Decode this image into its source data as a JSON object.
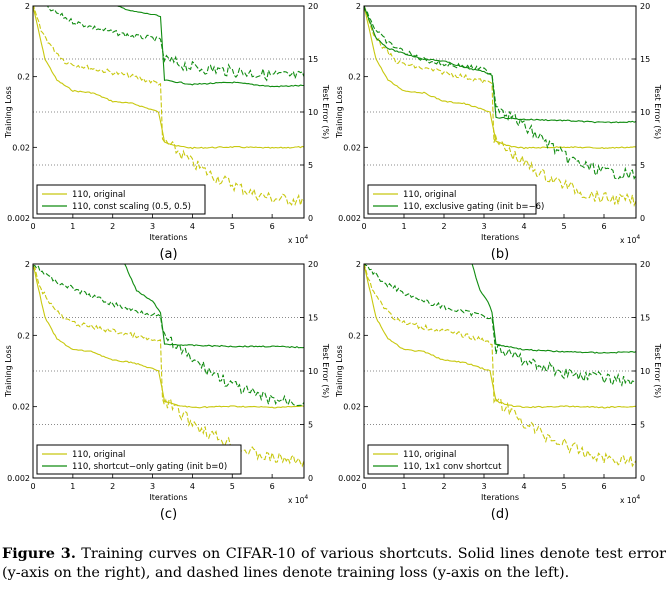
{
  "caption": {
    "label": "Figure 3.",
    "text": "Training curves on CIFAR-10 of various shortcuts. Solid lines denote test error (y-axis on the right), and dashed lines denote training loss (y-axis on the left)."
  },
  "colors": {
    "original": "#c8c810",
    "variant": "#118c11"
  },
  "chart_data": [
    {
      "type": "line",
      "panel": "(a)",
      "xlabel": "Iterations",
      "x_multiplier": "x 10^4",
      "ylabel_left": "Training Loss",
      "ylabel_right": "Test Error (%)",
      "xlim": [
        0,
        6.8
      ],
      "xticks": [
        0,
        1,
        2,
        3,
        4,
        5,
        6
      ],
      "ylim_left": [
        0.002,
        2
      ],
      "yscale_left": "log",
      "yticks_left": [
        "0.002",
        "0.02",
        "0.2",
        "2"
      ],
      "ylim_right": [
        0,
        20
      ],
      "yticks_right": [
        0,
        5,
        10,
        15,
        20
      ],
      "legend_position": "bottom-left",
      "series": [
        {
          "name": "110, original",
          "color": "#c8c810",
          "style": "solid",
          "axis": "right",
          "x": [
            0,
            0.3,
            0.6,
            1.0,
            1.5,
            2.0,
            2.5,
            3.0,
            3.15,
            3.3,
            3.6,
            4,
            5,
            6,
            6.8
          ],
          "y": [
            20,
            15,
            13,
            12,
            11.8,
            11,
            10.8,
            10.2,
            10,
            7.2,
            6.8,
            6.6,
            6.7,
            6.6,
            6.7
          ]
        },
        {
          "name": "110, original",
          "color": "#c8c810",
          "style": "dashed",
          "axis": "left",
          "x": [
            0,
            0.2,
            0.5,
            0.8,
            1.0,
            1.5,
            2.0,
            2.5,
            3.0,
            3.2,
            3.25,
            3.5,
            4,
            4.5,
            5,
            5.5,
            6,
            6.8
          ],
          "y": [
            2,
            0.9,
            0.5,
            0.33,
            0.3,
            0.26,
            0.23,
            0.2,
            0.17,
            0.16,
            0.025,
            0.02,
            0.012,
            0.008,
            0.006,
            0.0045,
            0.0038,
            0.0035
          ]
        },
        {
          "name": "110, const scaling (0.5, 0.5)",
          "color": "#118c11",
          "style": "solid",
          "axis": "right",
          "x": [
            2.1,
            2.5,
            3.0,
            3.2,
            3.3,
            4,
            5,
            6,
            6.8
          ],
          "y": [
            20,
            19.5,
            19.2,
            19,
            13,
            12.6,
            12.8,
            12.4,
            12.5
          ]
        },
        {
          "name": "110, const scaling (0.5, 0.5)",
          "color": "#118c11",
          "style": "dashed",
          "axis": "left",
          "x": [
            0.3,
            0.5,
            1,
            1.5,
            2,
            2.5,
            3,
            3.2,
            3.3,
            4,
            5,
            6,
            6.8
          ],
          "y": [
            2,
            1.7,
            1.2,
            1.0,
            0.85,
            0.75,
            0.7,
            0.65,
            0.35,
            0.27,
            0.24,
            0.21,
            0.2
          ]
        }
      ]
    },
    {
      "type": "line",
      "panel": "(b)",
      "xlabel": "Iterations",
      "x_multiplier": "x 10^4",
      "ylabel_left": "Training Loss",
      "ylabel_right": "Test Error (%)",
      "xlim": [
        0,
        6.8
      ],
      "xticks": [
        0,
        1,
        2,
        3,
        4,
        5,
        6
      ],
      "ylim_left": [
        0.002,
        2
      ],
      "yscale_left": "log",
      "yticks_left": [
        "0.002",
        "0.02",
        "0.2",
        "2"
      ],
      "ylim_right": [
        0,
        20
      ],
      "yticks_right": [
        0,
        5,
        10,
        15,
        20
      ],
      "legend_position": "bottom-left",
      "series": [
        {
          "name": "110, original",
          "color": "#c8c810",
          "style": "solid",
          "axis": "right",
          "x": [
            0,
            0.3,
            0.6,
            1.0,
            1.5,
            2.0,
            2.5,
            3.0,
            3.15,
            3.3,
            3.6,
            4,
            5,
            6,
            6.8
          ],
          "y": [
            20,
            15,
            13,
            12,
            11.8,
            11,
            10.8,
            10.2,
            10,
            7.2,
            6.8,
            6.6,
            6.7,
            6.6,
            6.7
          ]
        },
        {
          "name": "110, original",
          "color": "#c8c810",
          "style": "dashed",
          "axis": "left",
          "x": [
            0,
            0.2,
            0.5,
            0.8,
            1.0,
            1.5,
            2.0,
            2.5,
            3.0,
            3.2,
            3.25,
            3.5,
            4,
            4.5,
            5,
            5.5,
            6,
            6.8
          ],
          "y": [
            2,
            0.9,
            0.5,
            0.33,
            0.3,
            0.26,
            0.23,
            0.2,
            0.17,
            0.16,
            0.025,
            0.02,
            0.012,
            0.008,
            0.006,
            0.0045,
            0.0038,
            0.0035
          ]
        },
        {
          "name": "110, exclusive gating (init b=−6)",
          "color": "#118c11",
          "style": "solid",
          "axis": "right",
          "x": [
            0,
            0.3,
            0.6,
            1,
            1.5,
            2,
            2.5,
            3,
            3.2,
            3.3,
            4,
            5,
            6,
            6.8
          ],
          "y": [
            20,
            17,
            16,
            15.5,
            15,
            14.8,
            14.2,
            13.8,
            13.5,
            9.5,
            9.3,
            9.2,
            9.0,
            9.1
          ]
        },
        {
          "name": "110, exclusive gating (init b=−6)",
          "color": "#118c11",
          "style": "dashed",
          "axis": "left",
          "x": [
            0,
            0.3,
            0.6,
            1,
            1.5,
            2,
            2.5,
            3,
            3.2,
            3.3,
            3.6,
            4,
            4.5,
            5,
            5.5,
            6,
            6.8
          ],
          "y": [
            2,
            0.9,
            0.6,
            0.45,
            0.35,
            0.3,
            0.28,
            0.25,
            0.22,
            0.08,
            0.06,
            0.04,
            0.025,
            0.015,
            0.011,
            0.009,
            0.008
          ]
        }
      ]
    },
    {
      "type": "line",
      "panel": "(c)",
      "xlabel": "Iterations",
      "x_multiplier": "x 10^4",
      "ylabel_left": "Training Loss",
      "ylabel_right": "Test Error (%)",
      "xlim": [
        0,
        6.8
      ],
      "xticks": [
        0,
        1,
        2,
        3,
        4,
        5,
        6
      ],
      "ylim_left": [
        0.002,
        2
      ],
      "yscale_left": "log",
      "yticks_left": [
        "0.002",
        "0.02",
        "0.2",
        "2"
      ],
      "ylim_right": [
        0,
        20
      ],
      "yticks_right": [
        0,
        5,
        10,
        15,
        20
      ],
      "legend_position": "bottom-left",
      "series": [
        {
          "name": "110, original",
          "color": "#c8c810",
          "style": "solid",
          "axis": "right",
          "x": [
            0,
            0.3,
            0.6,
            1.0,
            1.5,
            2.0,
            2.5,
            3.0,
            3.15,
            3.3,
            3.6,
            4,
            5,
            6,
            6.8
          ],
          "y": [
            20,
            15,
            13,
            12,
            11.8,
            11,
            10.8,
            10.2,
            10,
            7.2,
            6.8,
            6.6,
            6.7,
            6.6,
            6.7
          ]
        },
        {
          "name": "110, original",
          "color": "#c8c810",
          "style": "dashed",
          "axis": "left",
          "x": [
            0,
            0.2,
            0.5,
            0.8,
            1.0,
            1.5,
            2.0,
            2.5,
            3.0,
            3.2,
            3.25,
            3.5,
            4,
            4.5,
            5,
            5.5,
            6,
            6.8
          ],
          "y": [
            2,
            0.9,
            0.5,
            0.33,
            0.3,
            0.26,
            0.23,
            0.2,
            0.17,
            0.16,
            0.025,
            0.02,
            0.012,
            0.008,
            0.006,
            0.0045,
            0.0038,
            0.0035
          ]
        },
        {
          "name": "110, shortcut−only gating (init b=0)",
          "color": "#118c11",
          "style": "solid",
          "axis": "right",
          "x": [
            2.3,
            2.6,
            3.0,
            3.2,
            3.3,
            4,
            5,
            6,
            6.8
          ],
          "y": [
            20,
            17.5,
            16.5,
            15.5,
            12.5,
            12.4,
            12.3,
            12.3,
            12.2
          ]
        },
        {
          "name": "110, shortcut−only gating (init b=0)",
          "color": "#118c11",
          "style": "dashed",
          "axis": "left",
          "x": [
            0,
            0.5,
            1,
            1.5,
            2,
            2.5,
            3,
            3.2,
            3.3,
            3.6,
            4,
            4.5,
            5,
            5.5,
            6,
            6.8
          ],
          "y": [
            2,
            1.2,
            0.9,
            0.7,
            0.55,
            0.45,
            0.4,
            0.35,
            0.18,
            0.14,
            0.09,
            0.06,
            0.04,
            0.03,
            0.025,
            0.023
          ]
        }
      ]
    },
    {
      "type": "line",
      "panel": "(d)",
      "xlabel": "Iterations",
      "x_multiplier": "x 10^4",
      "ylabel_left": "Training Loss",
      "ylabel_right": "Test Error (%)",
      "xlim": [
        0,
        6.8
      ],
      "xticks": [
        0,
        1,
        2,
        3,
        4,
        5,
        6
      ],
      "ylim_left": [
        0.002,
        2
      ],
      "yscale_left": "log",
      "yticks_left": [
        "0.002",
        "0.02",
        "0.2",
        "2"
      ],
      "ylim_right": [
        0,
        20
      ],
      "yticks_right": [
        0,
        5,
        10,
        15,
        20
      ],
      "legend_position": "bottom-left",
      "series": [
        {
          "name": "110, original",
          "color": "#c8c810",
          "style": "solid",
          "axis": "right",
          "x": [
            0,
            0.3,
            0.6,
            1.0,
            1.5,
            2.0,
            2.5,
            3.0,
            3.15,
            3.3,
            3.6,
            4,
            5,
            6,
            6.8
          ],
          "y": [
            20,
            15,
            13,
            12,
            11.8,
            11,
            10.8,
            10.2,
            10,
            7.2,
            6.8,
            6.6,
            6.7,
            6.6,
            6.7
          ]
        },
        {
          "name": "110, original",
          "color": "#c8c810",
          "style": "dashed",
          "axis": "left",
          "x": [
            0,
            0.2,
            0.5,
            0.8,
            1.0,
            1.5,
            2.0,
            2.5,
            3.0,
            3.2,
            3.25,
            3.5,
            4,
            4.5,
            5,
            5.5,
            6,
            6.8
          ],
          "y": [
            2,
            0.9,
            0.5,
            0.33,
            0.3,
            0.26,
            0.23,
            0.2,
            0.17,
            0.16,
            0.025,
            0.02,
            0.012,
            0.008,
            0.006,
            0.0045,
            0.0038,
            0.0035
          ]
        },
        {
          "name": "110, 1x1 conv shortcut",
          "color": "#118c11",
          "style": "solid",
          "axis": "right",
          "x": [
            2.7,
            2.9,
            3.1,
            3.2,
            3.3,
            4,
            5,
            6,
            6.8
          ],
          "y": [
            20,
            17.5,
            16.5,
            15.5,
            12.5,
            12,
            11.8,
            11.7,
            11.8
          ]
        },
        {
          "name": "110, 1x1 conv shortcut",
          "color": "#118c11",
          "style": "dashed",
          "axis": "left",
          "x": [
            0,
            0.5,
            1,
            1.5,
            2,
            2.5,
            3,
            3.2,
            3.3,
            4,
            5,
            6,
            6.8
          ],
          "y": [
            2,
            1.1,
            0.8,
            0.6,
            0.5,
            0.42,
            0.38,
            0.35,
            0.13,
            0.09,
            0.06,
            0.05,
            0.045
          ]
        }
      ]
    }
  ]
}
